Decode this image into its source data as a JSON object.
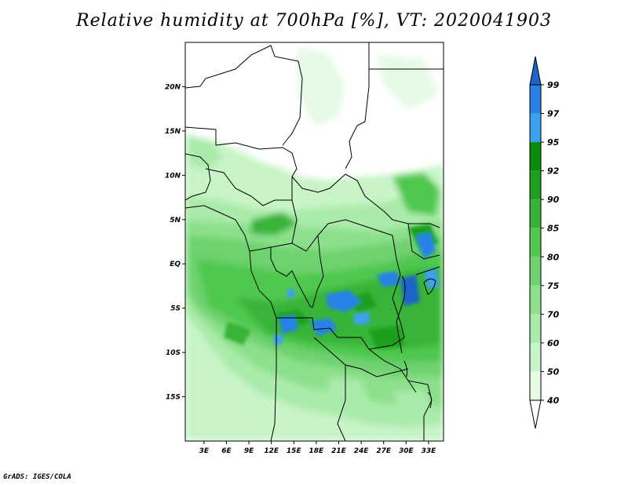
{
  "title": "Relative humidity at 700hPa [%], VT: 2020041903",
  "credit": "GrADS: IGES/COLA",
  "map": {
    "lat_labels": [
      "20N",
      "15N",
      "10N",
      "5N",
      "EQ",
      "5S",
      "10S",
      "15S"
    ],
    "lat_values": [
      20,
      15,
      10,
      5,
      0,
      -5,
      -10,
      -15
    ],
    "lon_labels": [
      "3E",
      "6E",
      "9E",
      "12E",
      "15E",
      "18E",
      "21E",
      "24E",
      "27E",
      "30E",
      "33E"
    ],
    "lon_values": [
      3,
      6,
      9,
      12,
      15,
      18,
      21,
      24,
      27,
      30,
      33
    ],
    "lon_range": [
      0.5,
      35
    ],
    "lat_range": [
      -20,
      25
    ]
  },
  "colorbar": {
    "labels": [
      "99",
      "97",
      "95",
      "92",
      "90",
      "85",
      "80",
      "75",
      "70",
      "60",
      "50",
      "40"
    ],
    "levels": [
      99,
      97,
      95,
      92,
      90,
      85,
      80,
      75,
      70,
      60,
      50,
      40
    ],
    "colors": [
      "#1e64c8",
      "#2882e6",
      "#3ca0f0",
      "#0a8c0a",
      "#1ea01e",
      "#37b437",
      "#50c850",
      "#6ed26e",
      "#8ce08c",
      "#aaeaaa",
      "#c8f4c8",
      "#e6fae6",
      "#ffffff"
    ]
  }
}
